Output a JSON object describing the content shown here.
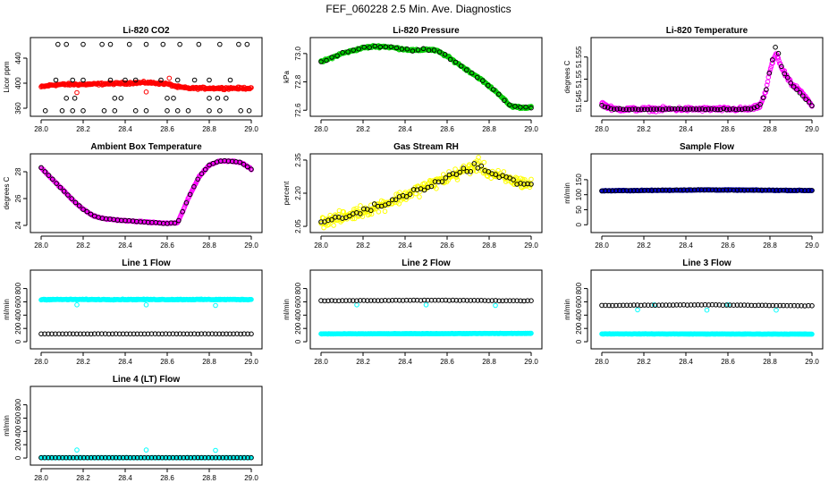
{
  "title": "FEF_060228  2.5 Min. Ave. Diagnostics",
  "colors": {
    "black": "#000000",
    "red": "#ff0000",
    "green": "#00cc00",
    "magenta": "#ff00ff",
    "yellow": "#ffff00",
    "blue": "#0000cc",
    "cyan": "#00ffff"
  },
  "chart_data": [
    {
      "type": "scatter",
      "title": "Li-820 CO2",
      "ylabel": "Licor ppm",
      "xlim": [
        28.0,
        29.0
      ],
      "ylim": [
        350,
        470
      ],
      "xticks": [
        "28.0",
        "28.2",
        "28.4",
        "28.6",
        "28.8",
        "29.0"
      ],
      "yticks": [
        {
          "v": 360,
          "t": "360"
        },
        {
          "v": 400,
          "t": "400"
        },
        {
          "v": 440,
          "t": "440"
        }
      ],
      "series": [
        {
          "color": "#ff0000",
          "style": "dense",
          "x": [
            28.0,
            28.05,
            28.1,
            28.2,
            28.3,
            28.4,
            28.5,
            28.6,
            28.65,
            28.7,
            28.8,
            28.9,
            29.0
          ],
          "y": [
            394,
            397,
            398,
            398,
            399,
            400,
            401,
            399,
            394,
            392,
            392,
            392,
            392
          ],
          "noise": 2.5
        },
        {
          "color": "#ff0000",
          "style": "points",
          "x": [
            28.17,
            28.5,
            28.61
          ],
          "y": [
            385,
            386,
            408
          ]
        },
        {
          "color": "#000000",
          "style": "points",
          "x": [
            28.08,
            28.12,
            28.2,
            28.29,
            28.33,
            28.42,
            28.5,
            28.58,
            28.66,
            28.75,
            28.85,
            28.94,
            28.98
          ],
          "y": [
            462,
            462,
            462,
            462,
            462,
            462,
            462,
            462,
            462,
            462,
            462,
            462,
            462
          ]
        },
        {
          "color": "#000000",
          "style": "points",
          "x": [
            28.02,
            28.1,
            28.15,
            28.2,
            28.3,
            28.35,
            28.45,
            28.5,
            28.6,
            28.65,
            28.7,
            28.8,
            28.85,
            28.95,
            28.99
          ],
          "y": [
            356,
            356,
            356,
            356,
            356,
            356,
            356,
            356,
            356,
            356,
            356,
            356,
            356,
            356,
            356
          ]
        },
        {
          "color": "#000000",
          "style": "points",
          "x": [
            28.07,
            28.15,
            28.2,
            28.33,
            28.4,
            28.45,
            28.57,
            28.65,
            28.73,
            28.8,
            28.9
          ],
          "y": [
            405,
            405,
            405,
            405,
            405,
            405,
            405,
            405,
            405,
            405,
            405
          ]
        },
        {
          "color": "#000000",
          "style": "points",
          "x": [
            28.12,
            28.16,
            28.35,
            28.38,
            28.6,
            28.63,
            28.8,
            28.84,
            28.88
          ],
          "y": [
            376,
            376,
            376,
            376,
            376,
            376,
            376,
            376,
            376
          ]
        }
      ]
    },
    {
      "type": "scatter",
      "title": "Li-820 Pressure",
      "ylabel": "kPa",
      "xlim": [
        28.0,
        29.0
      ],
      "ylim": [
        72.57,
        73.1
      ],
      "xticks": [
        "28.0",
        "28.2",
        "28.4",
        "28.6",
        "28.8",
        "29.0"
      ],
      "yticks": [
        {
          "v": 72.6,
          "t": "72.6"
        },
        {
          "v": 72.8,
          "t": "72.8"
        },
        {
          "v": 73.0,
          "t": "73.0"
        }
      ],
      "series": [
        {
          "color": "#00cc00",
          "style": "dense",
          "x": [
            28.0,
            28.05,
            28.1,
            28.15,
            28.2,
            28.25,
            28.3,
            28.35,
            28.4,
            28.45,
            28.5,
            28.55,
            28.6,
            28.65,
            28.7,
            28.75,
            28.8,
            28.85,
            28.9,
            28.95,
            29.0
          ],
          "y": [
            72.94,
            72.97,
            73.0,
            73.02,
            73.04,
            73.05,
            73.05,
            73.04,
            73.03,
            73.02,
            73.03,
            73.02,
            72.98,
            72.93,
            72.88,
            72.83,
            72.77,
            72.71,
            72.63,
            72.62,
            72.62
          ],
          "noise": 0.012
        },
        {
          "color": "#000000",
          "style": "along",
          "x": [
            28.0,
            28.05,
            28.1,
            28.15,
            28.2,
            28.25,
            28.3,
            28.35,
            28.4,
            28.45,
            28.5,
            28.55,
            28.6,
            28.65,
            28.7,
            28.75,
            28.8,
            28.85,
            28.9,
            28.95,
            29.0
          ],
          "y": [
            72.94,
            72.97,
            73.0,
            73.02,
            73.04,
            73.05,
            73.05,
            73.04,
            73.03,
            73.02,
            73.03,
            73.02,
            72.98,
            72.93,
            72.88,
            72.83,
            72.77,
            72.71,
            72.63,
            72.62,
            72.62
          ],
          "count": 40,
          "noise": 0.01
        }
      ]
    },
    {
      "type": "scatter",
      "title": "Li-820 Temperature",
      "ylabel": "degrees C",
      "xlim": [
        28.0,
        29.0
      ],
      "ylim": [
        51.542,
        51.559
      ],
      "xticks": [
        "28.0",
        "28.2",
        "28.4",
        "28.6",
        "28.8",
        "29.0"
      ],
      "yticks": [
        {
          "v": 51.545,
          "t": "51.545"
        },
        {
          "v": 51.55,
          "t": "51.55"
        },
        {
          "v": 51.555,
          "t": "51.555"
        }
      ],
      "series": [
        {
          "color": "#ff00ff",
          "style": "dense",
          "x": [
            28.0,
            28.02,
            28.05,
            28.1,
            28.3,
            28.5,
            28.7,
            28.75,
            28.78,
            28.8,
            28.83,
            28.86,
            28.9,
            28.95,
            29.0
          ],
          "y": [
            51.5445,
            51.544,
            51.5433,
            51.5432,
            51.5432,
            51.5432,
            51.5432,
            51.5438,
            51.547,
            51.552,
            51.556,
            51.552,
            51.549,
            51.547,
            51.544
          ],
          "noise": 0.0007
        },
        {
          "color": "#000000",
          "style": "along",
          "x": [
            28.0,
            28.05,
            28.1,
            28.3,
            28.5,
            28.7,
            28.75,
            28.78,
            28.8,
            28.83,
            28.86,
            28.9,
            28.95,
            29.0
          ],
          "y": [
            51.544,
            51.5433,
            51.5432,
            51.5432,
            51.5432,
            51.5432,
            51.5438,
            51.547,
            51.552,
            51.558,
            51.552,
            51.549,
            51.5465,
            51.544
          ],
          "count": 70,
          "noise": 0.0002
        }
      ]
    },
    {
      "type": "scatter",
      "title": "Ambient Box Temperature",
      "ylabel": "degrees C",
      "xlim": [
        28.0,
        29.0
      ],
      "ylim": [
        23.6,
        29.2
      ],
      "xticks": [
        "28.0",
        "28.2",
        "28.4",
        "28.6",
        "28.8",
        "29.0"
      ],
      "yticks": [
        {
          "v": 24,
          "t": "24"
        },
        {
          "v": 26,
          "t": "26"
        },
        {
          "v": 28,
          "t": "28"
        }
      ],
      "series": [
        {
          "color": "#ff00ff",
          "style": "dense",
          "x": [
            28.0,
            28.05,
            28.1,
            28.15,
            28.2,
            28.25,
            28.3,
            28.4,
            28.5,
            28.6,
            28.65,
            28.7,
            28.75,
            28.8,
            28.85,
            28.9,
            28.95,
            29.0
          ],
          "y": [
            28.3,
            27.5,
            26.7,
            25.9,
            25.2,
            24.7,
            24.5,
            24.35,
            24.25,
            24.15,
            24.2,
            26.0,
            27.6,
            28.5,
            28.8,
            28.8,
            28.7,
            28.2
          ],
          "noise": 0.06
        },
        {
          "color": "#000000",
          "style": "along",
          "x": [
            28.0,
            28.05,
            28.1,
            28.15,
            28.2,
            28.25,
            28.3,
            28.4,
            28.5,
            28.6,
            28.65,
            28.7,
            28.75,
            28.8,
            28.85,
            28.9,
            28.95,
            29.0
          ],
          "y": [
            28.3,
            27.5,
            26.7,
            25.9,
            25.2,
            24.7,
            24.5,
            24.35,
            24.25,
            24.15,
            24.2,
            26.0,
            27.6,
            28.5,
            28.8,
            28.8,
            28.7,
            28.2
          ],
          "count": 56,
          "noise": 0.03
        }
      ]
    },
    {
      "type": "scatter",
      "title": "Gas Stream RH",
      "ylabel": "percent",
      "xlim": [
        28.0,
        29.0
      ],
      "ylim": [
        2.03,
        2.37
      ],
      "xticks": [
        "28.0",
        "28.2",
        "28.4",
        "28.6",
        "28.8",
        "29.0"
      ],
      "yticks": [
        {
          "v": 2.05,
          "t": "2.05"
        },
        {
          "v": 2.2,
          "t": "2.20"
        },
        {
          "v": 2.35,
          "t": "2.35"
        }
      ],
      "series": [
        {
          "color": "#ffff00",
          "style": "dense",
          "x": [
            28.0,
            28.1,
            28.2,
            28.3,
            28.4,
            28.5,
            28.6,
            28.7,
            28.75,
            28.8,
            28.9,
            29.0
          ],
          "y": [
            2.07,
            2.09,
            2.12,
            2.15,
            2.19,
            2.23,
            2.27,
            2.31,
            2.33,
            2.29,
            2.26,
            2.24
          ],
          "noise": 0.04
        },
        {
          "color": "#000000",
          "style": "along",
          "x": [
            28.0,
            28.1,
            28.2,
            28.3,
            28.4,
            28.5,
            28.6,
            28.7,
            28.75,
            28.8,
            28.9,
            29.0
          ],
          "y": [
            2.07,
            2.09,
            2.12,
            2.15,
            2.19,
            2.23,
            2.27,
            2.31,
            2.33,
            2.29,
            2.26,
            2.24
          ],
          "count": 60,
          "noise": 0.02
        }
      ]
    },
    {
      "type": "scatter",
      "title": "Sample Flow",
      "ylabel": "ml/min",
      "xlim": [
        28.0,
        29.0
      ],
      "ylim": [
        -20,
        230
      ],
      "xticks": [
        "28.0",
        "28.2",
        "28.4",
        "28.6",
        "28.8",
        "29.0"
      ],
      "yticks": [
        {
          "v": 0,
          "t": "0"
        },
        {
          "v": 50,
          "t": "50"
        },
        {
          "v": 100,
          "t": "100"
        },
        {
          "v": 150,
          "t": "150"
        }
      ],
      "series": [
        {
          "color": "#0000cc",
          "style": "dense",
          "x": [
            28.0,
            28.5,
            29.0
          ],
          "y": [
            113,
            116,
            114
          ],
          "noise": 2
        },
        {
          "color": "#000000",
          "style": "along",
          "x": [
            28.0,
            28.5,
            29.0
          ],
          "y": [
            113,
            116,
            114
          ],
          "count": 60,
          "noise": 1
        }
      ]
    },
    {
      "type": "scatter",
      "title": "Line 1 Flow",
      "ylabel": "ml/min",
      "xlim": [
        28.0,
        29.0
      ],
      "ylim": [
        -80,
        1050
      ],
      "xticks": [
        "28.0",
        "28.2",
        "28.4",
        "28.6",
        "28.8",
        "29.0"
      ],
      "yticks": [
        {
          "v": 0,
          "t": "0"
        },
        {
          "v": 200,
          "t": "200"
        },
        {
          "v": 400,
          "t": "400"
        },
        {
          "v": 600,
          "t": "600"
        },
        {
          "v": 800,
          "t": "800"
        }
      ],
      "series": [
        {
          "color": "#00ffff",
          "style": "dense",
          "x": [
            28.0,
            29.0
          ],
          "y": [
            635,
            635
          ],
          "noise": 9
        },
        {
          "color": "#00ffff",
          "style": "points",
          "x": [
            28.17,
            28.5,
            28.83
          ],
          "y": [
            555,
            555,
            545
          ]
        },
        {
          "color": "#000000",
          "style": "along",
          "x": [
            28.0,
            29.0
          ],
          "y": [
            118,
            118
          ],
          "count": 60,
          "noise": 2
        }
      ]
    },
    {
      "type": "scatter",
      "title": "Line 2 Flow",
      "ylabel": "ml/min",
      "xlim": [
        28.0,
        29.0
      ],
      "ylim": [
        -80,
        1050
      ],
      "xticks": [
        "28.0",
        "28.2",
        "28.4",
        "28.6",
        "28.8",
        "29.0"
      ],
      "yticks": [
        {
          "v": 0,
          "t": "0"
        },
        {
          "v": 200,
          "t": "200"
        },
        {
          "v": 400,
          "t": "400"
        },
        {
          "v": 600,
          "t": "600"
        },
        {
          "v": 800,
          "t": "800"
        }
      ],
      "series": [
        {
          "color": "#00ffff",
          "style": "dense",
          "x": [
            28.0,
            29.0
          ],
          "y": [
            118,
            125
          ],
          "noise": 4
        },
        {
          "color": "#00ffff",
          "style": "points",
          "x": [
            28.17,
            28.5,
            28.83
          ],
          "y": [
            555,
            555,
            545
          ]
        },
        {
          "color": "#000000",
          "style": "along",
          "x": [
            28.0,
            28.5,
            29.0
          ],
          "y": [
            615,
            625,
            615
          ],
          "count": 60,
          "noise": 4
        }
      ]
    },
    {
      "type": "scatter",
      "title": "Line 3 Flow",
      "ylabel": "ml/min",
      "xlim": [
        28.0,
        29.0
      ],
      "ylim": [
        -80,
        1050
      ],
      "xticks": [
        "28.0",
        "28.2",
        "28.4",
        "28.6",
        "28.8",
        "29.0"
      ],
      "yticks": [
        {
          "v": 0,
          "t": "0"
        },
        {
          "v": 200,
          "t": "200"
        },
        {
          "v": 400,
          "t": "400"
        },
        {
          "v": 600,
          "t": "600"
        },
        {
          "v": 800,
          "t": "800"
        }
      ],
      "series": [
        {
          "color": "#00ffff",
          "style": "dense",
          "x": [
            28.0,
            29.0
          ],
          "y": [
            118,
            115
          ],
          "noise": 4
        },
        {
          "color": "#00ffff",
          "style": "points",
          "x": [
            28.17,
            28.5,
            28.83,
            28.25,
            28.6
          ],
          "y": [
            480,
            475,
            475,
            555,
            555
          ]
        },
        {
          "color": "#000000",
          "style": "along",
          "x": [
            28.0,
            28.5,
            29.0
          ],
          "y": [
            545,
            555,
            540
          ],
          "count": 60,
          "noise": 4
        }
      ]
    },
    {
      "type": "scatter",
      "title": "Line 4 (LT) Flow",
      "ylabel": "ml/min",
      "xlim": [
        28.0,
        29.0
      ],
      "ylim": [
        -80,
        1050
      ],
      "xticks": [
        "28.0",
        "28.2",
        "28.4",
        "28.6",
        "28.8",
        "29.0"
      ],
      "yticks": [
        {
          "v": 0,
          "t": "0"
        },
        {
          "v": 200,
          "t": "200"
        },
        {
          "v": 400,
          "t": "400"
        },
        {
          "v": 600,
          "t": "600"
        },
        {
          "v": 800,
          "t": "800"
        }
      ],
      "series": [
        {
          "color": "#00ffff",
          "style": "dense",
          "x": [
            28.0,
            29.0
          ],
          "y": [
            5,
            5
          ],
          "noise": 2
        },
        {
          "color": "#00ffff",
          "style": "points",
          "x": [
            28.17,
            28.5,
            28.83
          ],
          "y": [
            120,
            120,
            115
          ]
        },
        {
          "color": "#000000",
          "style": "along",
          "x": [
            28.0,
            29.0
          ],
          "y": [
            5,
            5
          ],
          "count": 60,
          "noise": 1
        }
      ]
    }
  ]
}
